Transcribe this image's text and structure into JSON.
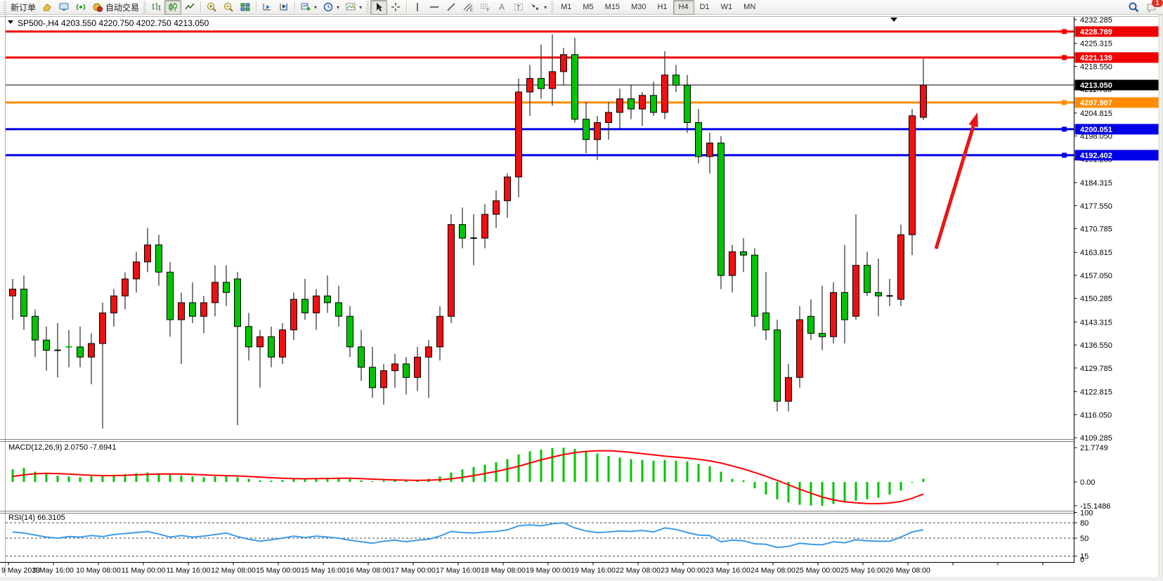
{
  "toolbar": {
    "new_order_label": "新订单",
    "auto_trading_label": "自动交易",
    "timeframes": [
      "M1",
      "M5",
      "M15",
      "M30",
      "H1",
      "H4",
      "D1",
      "W1",
      "MN"
    ],
    "selected_timeframe": "H4",
    "notification_count": "1",
    "icons": [
      "new-order",
      "history-center",
      "terminal",
      "signals",
      "auto-trading",
      "bar-chart",
      "candlestick-chart",
      "line-chart",
      "zoom-in",
      "zoom-out",
      "tile-windows",
      "arrange-a",
      "arrange-b",
      "new-chart",
      "period-clock",
      "profiles",
      "cursor",
      "crosshair",
      "vertical-line",
      "horizontal-line",
      "trendline",
      "equidistant-channel",
      "fibonacci",
      "text",
      "text-label",
      "arrows",
      "search",
      "chat"
    ]
  },
  "header": {
    "symbol_period": "SP500-,H4",
    "ohlc": "4203.550 4220.750 4202.750 4213.050"
  },
  "price_axis": {
    "ticks": [
      "4232.285",
      "4225.315",
      "4218.550",
      "4211.785",
      "4204.815",
      "4198.050",
      "4191.285",
      "4184.315",
      "4177.550",
      "4170.785",
      "4163.815",
      "4157.050",
      "4150.285",
      "4143.315",
      "4136.550",
      "4129.785",
      "4122.815",
      "4116.050",
      "4109.285"
    ],
    "badges": [
      {
        "value": "4228.789",
        "color": "#f00000"
      },
      {
        "value": "4221.139",
        "color": "#f00000"
      },
      {
        "value": "4213.050",
        "color": "#000000"
      },
      {
        "value": "4207.907",
        "color": "#ff8c00"
      },
      {
        "value": "4200.051",
        "color": "#0000e8"
      },
      {
        "value": "4192.402",
        "color": "#0000e8"
      }
    ]
  },
  "indicators": {
    "macd": {
      "label": "MACD(12,26,9)",
      "main": "2.0750",
      "signal": "-7.6941",
      "axis": [
        "21.7749",
        "0.00",
        "-15.1486"
      ]
    },
    "rsi": {
      "label": "RSI(14)",
      "value": "66.3105",
      "axis": [
        "100",
        "80",
        "50",
        "15",
        "0"
      ]
    }
  },
  "time_axis": [
    "9 May 2023",
    "9 May 16:00",
    "10 May 08:00",
    "11 May 00:00",
    "11 May 16:00",
    "12 May 08:00",
    "15 May 00:00",
    "15 May 16:00",
    "16 May 08:00",
    "17 May 00:00",
    "17 May 16:00",
    "18 May 08:00",
    "19 May 00:00",
    "19 May 16:00",
    "22 May 08:00",
    "23 May 00:00",
    "23 May 16:00",
    "24 May 08:00",
    "25 May 00:00",
    "25 May 16:00",
    "26 May 08:00"
  ],
  "chart_data": {
    "type": "candlestick",
    "symbol": "SP500-",
    "timeframe": "H4",
    "title": "SP500-,H4 4203.550 4220.750 4202.750 4213.050",
    "bull_color": "#ee1111",
    "bear_color": "#00c400",
    "price_range": [
      4109.285,
      4232.285
    ],
    "current_price": 4213.05,
    "candles": [
      [
        4151,
        4156,
        4144,
        4153
      ],
      [
        4153,
        4157,
        4141,
        4145
      ],
      [
        4145,
        4147,
        4133,
        4138
      ],
      [
        4138,
        4142,
        4129,
        4135
      ],
      [
        4135,
        4143,
        4127,
        4135
      ],
      [
        4136,
        4141,
        4130,
        4136
      ],
      [
        4136,
        4142,
        4130,
        4133
      ],
      [
        4133,
        4140,
        4125,
        4137
      ],
      [
        4137,
        4149,
        4112,
        4146
      ],
      [
        4146,
        4153,
        4142,
        4151
      ],
      [
        4151,
        4158,
        4147,
        4156
      ],
      [
        4156,
        4164,
        4152,
        4161
      ],
      [
        4161,
        4171,
        4158,
        4166
      ],
      [
        4166,
        4169,
        4154,
        4158
      ],
      [
        4158,
        4161,
        4139,
        4144
      ],
      [
        4144,
        4152,
        4131,
        4149
      ],
      [
        4149,
        4155,
        4143,
        4145
      ],
      [
        4145,
        4151,
        4140,
        4149
      ],
      [
        4149,
        4160,
        4145,
        4155
      ],
      [
        4155,
        4160,
        4148,
        4152
      ],
      [
        4156,
        4158,
        4113,
        4142
      ],
      [
        4142,
        4146,
        4132,
        4136
      ],
      [
        4136,
        4141,
        4124,
        4139
      ],
      [
        4139,
        4142,
        4130,
        4133
      ],
      [
        4133,
        4143,
        4131,
        4141
      ],
      [
        4141,
        4152,
        4138,
        4150
      ],
      [
        4150,
        4156,
        4144,
        4146
      ],
      [
        4146,
        4153,
        4141,
        4151
      ],
      [
        4151,
        4157,
        4146,
        4149
      ],
      [
        4149,
        4154,
        4142,
        4145
      ],
      [
        4145,
        4148,
        4133,
        4136
      ],
      [
        4136,
        4141,
        4126,
        4130
      ],
      [
        4130,
        4136,
        4121,
        4124
      ],
      [
        4124,
        4131,
        4119,
        4129
      ],
      [
        4129,
        4134,
        4124,
        4131
      ],
      [
        4131,
        4133,
        4122,
        4127
      ],
      [
        4127,
        4136,
        4123,
        4133
      ],
      [
        4133,
        4138,
        4121,
        4136
      ],
      [
        4136,
        4148,
        4132,
        4145
      ],
      [
        4145,
        4175,
        4143,
        4172
      ],
      [
        4172,
        4177,
        4165,
        4168
      ],
      [
        4168,
        4175,
        4160,
        4168
      ],
      [
        4168,
        4178,
        4165,
        4175
      ],
      [
        4175,
        4182,
        4171,
        4179
      ],
      [
        4179,
        4187,
        4174,
        4186
      ],
      [
        4186,
        4215,
        4180,
        4211
      ],
      [
        4211,
        4219,
        4204,
        4215
      ],
      [
        4215,
        4225,
        4209,
        4212
      ],
      [
        4212,
        4228,
        4207,
        4217
      ],
      [
        4217,
        4224,
        4213,
        4222
      ],
      [
        4222,
        4227,
        4202,
        4203
      ],
      [
        4203,
        4208,
        4193,
        4197
      ],
      [
        4197,
        4204,
        4191,
        4202
      ],
      [
        4202,
        4208,
        4197,
        4205
      ],
      [
        4205,
        4212,
        4200,
        4209
      ],
      [
        4209,
        4213,
        4203,
        4206
      ],
      [
        4206,
        4211,
        4201,
        4210
      ],
      [
        4210,
        4214,
        4204,
        4205
      ],
      [
        4205,
        4223,
        4203,
        4216
      ],
      [
        4216,
        4219,
        4211,
        4213
      ],
      [
        4213,
        4216,
        4199,
        4202
      ],
      [
        4202,
        4206,
        4190,
        4192
      ],
      [
        4192,
        4199,
        4187,
        4196
      ],
      [
        4196,
        4198,
        4153,
        4157
      ],
      [
        4157,
        4166,
        4152,
        4164
      ],
      [
        4164,
        4168,
        4158,
        4163
      ],
      [
        4163,
        4165,
        4142,
        4145
      ],
      [
        4146,
        4158,
        4138,
        4141
      ],
      [
        4141,
        4144,
        4117,
        4120
      ],
      [
        4120,
        4131,
        4117,
        4127
      ],
      [
        4127,
        4148,
        4124,
        4144
      ],
      [
        4145,
        4150,
        4138,
        4140
      ],
      [
        4140,
        4154,
        4135,
        4139
      ],
      [
        4139,
        4155,
        4137,
        4152
      ],
      [
        4152,
        4166,
        4137,
        4144
      ],
      [
        4145,
        4175,
        4144,
        4160
      ],
      [
        4160,
        4164,
        4151,
        4152
      ],
      [
        4152,
        4162,
        4145,
        4151
      ],
      [
        4151,
        4156,
        4148,
        4151
      ],
      [
        4150,
        4172,
        4148,
        4169
      ],
      [
        4169,
        4206,
        4163,
        4204
      ],
      [
        4203.55,
        4220.75,
        4202.75,
        4213.05
      ]
    ],
    "horizontal_lines": [
      {
        "price": 4228.789,
        "color": "#f00000",
        "width": 3
      },
      {
        "price": 4221.139,
        "color": "#f00000",
        "width": 3
      },
      {
        "price": 4213.05,
        "color": "#000000",
        "width": 1
      },
      {
        "price": 4207.907,
        "color": "#ff8c00",
        "width": 3
      },
      {
        "price": 4200.051,
        "color": "#0000e8",
        "width": 3
      },
      {
        "price": 4192.402,
        "color": "#0000e8",
        "width": 3
      }
    ],
    "macd": {
      "histogram": [
        8,
        9,
        6.5,
        5,
        4,
        3.5,
        3,
        3.5,
        4,
        4.5,
        5,
        5.5,
        6,
        5.5,
        4.5,
        4,
        3.5,
        3,
        3.5,
        4,
        3,
        2,
        1,
        0.8,
        1.2,
        2,
        2.2,
        2.5,
        2.8,
        2.5,
        1.8,
        1,
        0.5,
        0.8,
        1,
        0.8,
        1.2,
        2,
        3.5,
        6,
        8,
        9.5,
        11,
        12.5,
        14.5,
        17.5,
        19.5,
        20.5,
        21.5,
        21.77,
        21,
        19.5,
        18,
        16.5,
        15.5,
        14.5,
        14,
        13.5,
        14,
        13.5,
        13,
        11.5,
        10,
        6.5,
        2,
        1,
        -4,
        -8,
        -11,
        -13,
        -14.5,
        -15,
        -15.15,
        -14,
        -12.5,
        -12,
        -11,
        -10,
        -8,
        -5.5,
        -0.5,
        2.075
      ],
      "signal": [
        3.5,
        4.5,
        5.2,
        5.5,
        5.3,
        5,
        4.6,
        4.2,
        4,
        4,
        4.2,
        4.5,
        4.8,
        5,
        5.1,
        5,
        4.8,
        4.5,
        4.2,
        4,
        3.8,
        3.5,
        3.1,
        2.7,
        2.3,
        2.1,
        2,
        2.1,
        2.2,
        2.3,
        2.3,
        2.1,
        1.8,
        1.5,
        1.3,
        1.1,
        1,
        1.1,
        1.4,
        2,
        2.9,
        4,
        5.3,
        6.7,
        8.2,
        10,
        12,
        14,
        15.8,
        17.4,
        18.6,
        19.4,
        19.8,
        19.8,
        19.4,
        18.8,
        18,
        17.2,
        16.4,
        15.8,
        15.2,
        14.4,
        13.4,
        12,
        10.2,
        8.2,
        6,
        3.6,
        1,
        -1.8,
        -4.6,
        -7.2,
        -9.6,
        -11.4,
        -12.6,
        -13.3,
        -13.7,
        -13.8,
        -13.4,
        -12.4,
        -10.4,
        -7.6941
      ],
      "axis_max": 21.7749,
      "axis_min": -15.1486,
      "histogram_color": "#00c400",
      "signal_color": "#ff0000"
    },
    "rsi": {
      "values": [
        62,
        60,
        56,
        52,
        50,
        53,
        52,
        55,
        53,
        57,
        59,
        61,
        63,
        58,
        52,
        55,
        52,
        54,
        57,
        60,
        53,
        48,
        44,
        47,
        50,
        54,
        51,
        54,
        52,
        50,
        46,
        43,
        40,
        44,
        46,
        43,
        46,
        48,
        54,
        63,
        61,
        60,
        62,
        63,
        66,
        74,
        76,
        74,
        78,
        80,
        70,
        64,
        61,
        62,
        64,
        63,
        65,
        62,
        70,
        67,
        61,
        56,
        55,
        43,
        46,
        45,
        39,
        38,
        32,
        34,
        40,
        38,
        37,
        43,
        41,
        47,
        45,
        44,
        44,
        52,
        62,
        66.31
      ],
      "levels": [
        80,
        50,
        15
      ],
      "line_color": "#3d9be9"
    },
    "arrow": {
      "from": [
        1332,
        354
      ],
      "to": [
        1391,
        160
      ],
      "color": "#e81717"
    }
  }
}
